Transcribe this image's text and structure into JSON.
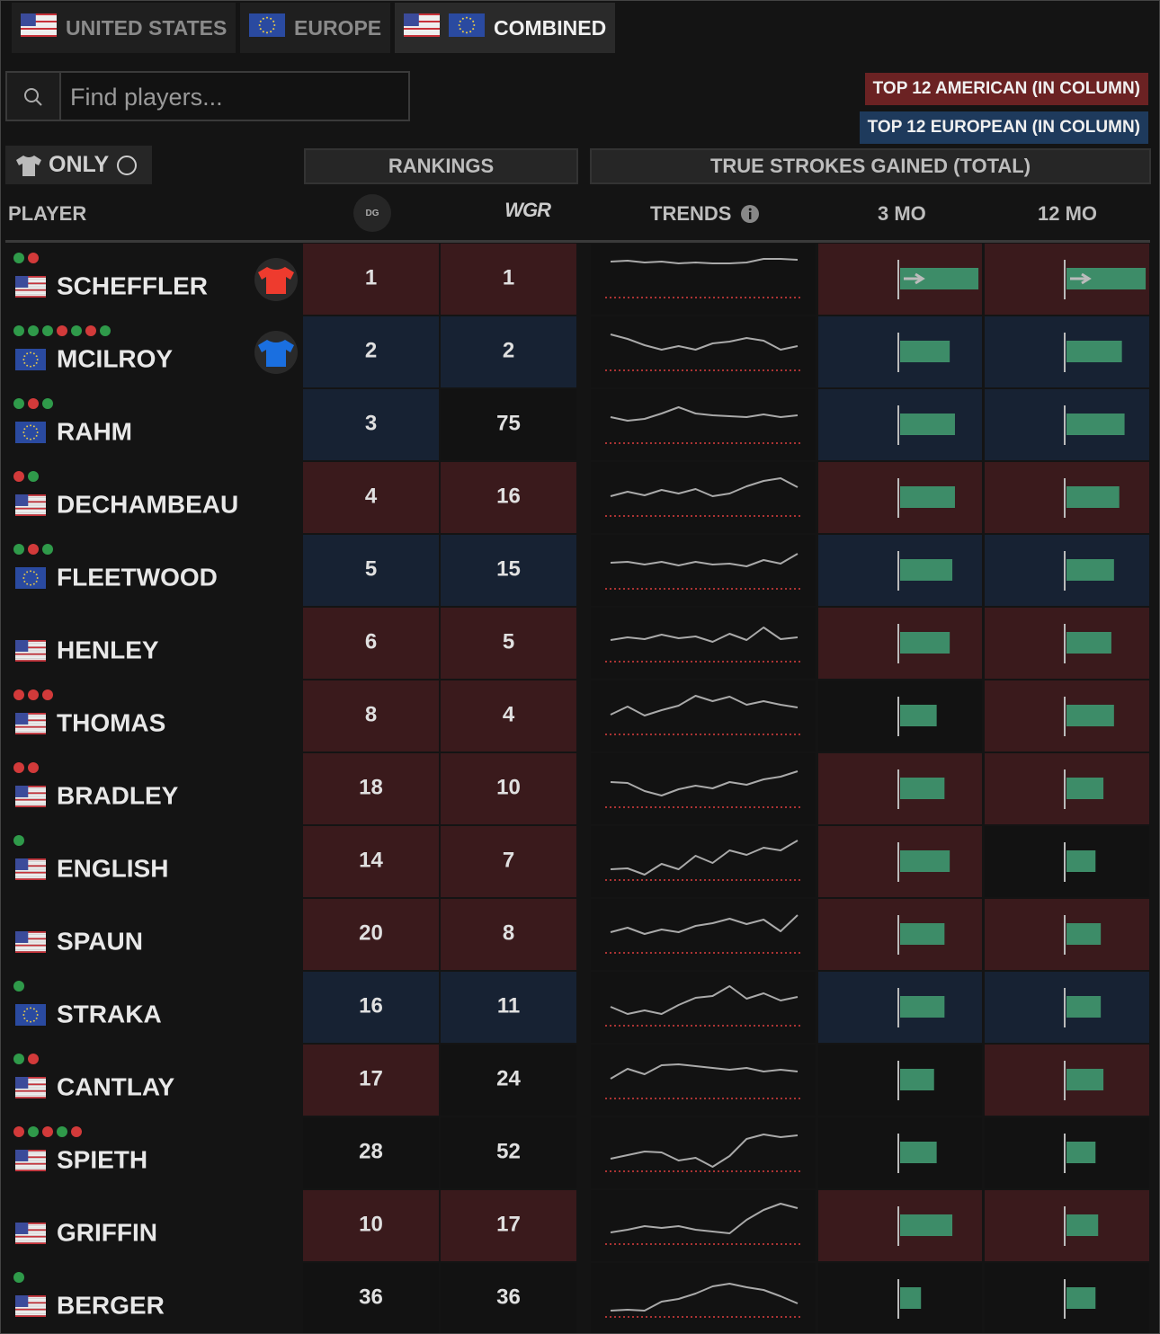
{
  "tabs": [
    "UNITED STATES",
    "EUROPE",
    "COMBINED"
  ],
  "search": {
    "placeholder": "Find players..."
  },
  "legend": [
    "TOP 12 AMERICAN (IN COLUMN)",
    "TOP 12 EUROPEAN (IN COLUMN)"
  ],
  "filter": "ONLY",
  "groups": [
    "RANKINGS",
    "TRUE STROKES GAINED (TOTAL)"
  ],
  "columns": {
    "player": "PLAYER",
    "dg": "DG",
    "wgr": "WGR",
    "trends": "TRENDS",
    "sg3": "3 MO",
    "sg12": "12 MO"
  },
  "sg_lim": [
    0,
    3.1
  ],
  "trend_lim": [
    0,
    10
  ],
  "rows": [
    {
      "name": "SCHEFFLER",
      "region": "us",
      "team": "us",
      "dots": [
        "green",
        "red"
      ],
      "dg": 1,
      "wgr": 1,
      "sg3": 3.0,
      "sg12": 3.0,
      "arrow": true,
      "hl": [
        "us",
        "us",
        "us",
        "us"
      ],
      "trend": [
        8,
        8.2,
        7.8,
        8,
        7.6,
        7.8,
        7.6,
        7.6,
        7.8,
        8.6,
        8.6,
        8.4
      ]
    },
    {
      "name": "MCILROY",
      "region": "eu",
      "team": "eu",
      "dots": [
        "green",
        "green",
        "green",
        "red",
        "green",
        "red",
        "green"
      ],
      "dg": 2,
      "wgr": 2,
      "sg3": 1.9,
      "sg12": 2.1,
      "hl": [
        "eu",
        "eu",
        "eu",
        "eu"
      ],
      "trend": [
        8,
        7,
        5.6,
        4.6,
        5.4,
        4.6,
        6,
        6.4,
        7.2,
        6.6,
        4.6,
        5.4
      ]
    },
    {
      "name": "RAHM",
      "region": "eu",
      "dots": [
        "green",
        "red",
        "green"
      ],
      "dg": 3,
      "wgr": 75,
      "sg3": 2.1,
      "sg12": 2.2,
      "hl": [
        "eu",
        null,
        "eu",
        "eu"
      ],
      "trend": [
        5.8,
        5,
        5.4,
        6.6,
        8,
        6.6,
        6.2,
        6,
        5.8,
        6.4,
        5.8,
        6.2
      ]
    },
    {
      "name": "DECHAMBEAU",
      "region": "us",
      "dots": [
        "red",
        "green"
      ],
      "dg": 4,
      "wgr": 16,
      "sg3": 2.1,
      "sg12": 2.0,
      "hl": [
        "us",
        "us",
        "us",
        "us"
      ],
      "trend": [
        4.4,
        5.4,
        4.6,
        5.8,
        5,
        6,
        4.4,
        5,
        6.6,
        7.8,
        8.4,
        6.4
      ]
    },
    {
      "name": "FLEETWOOD",
      "region": "eu",
      "dots": [
        "green",
        "red",
        "green"
      ],
      "dg": 5,
      "wgr": 15,
      "sg3": 2.0,
      "sg12": 1.8,
      "hl": [
        "eu",
        "eu",
        "eu",
        "eu"
      ],
      "trend": [
        5.8,
        6,
        5.4,
        6,
        5.2,
        6,
        5.4,
        5.6,
        5,
        6.4,
        5.6,
        7.8
      ]
    },
    {
      "name": "HENLEY",
      "region": "us",
      "dots": [],
      "dg": 6,
      "wgr": 5,
      "sg3": 1.9,
      "sg12": 1.7,
      "hl": [
        "us",
        "us",
        "us",
        "us"
      ],
      "trend": [
        4.8,
        5.4,
        5,
        6,
        5.2,
        5.6,
        4.4,
        6.2,
        4.8,
        7.6,
        5,
        5.4
      ]
    },
    {
      "name": "THOMAS",
      "region": "us",
      "dots": [
        "red",
        "red",
        "red"
      ],
      "dg": 8,
      "wgr": 4,
      "sg3": 1.4,
      "sg12": 1.8,
      "hl": [
        "us",
        "us",
        null,
        "us"
      ],
      "trend": [
        4.4,
        6.2,
        4.2,
        5.4,
        6.4,
        8.6,
        7.4,
        8.4,
        6.6,
        7.4,
        6.6,
        6
      ]
    },
    {
      "name": "BRADLEY",
      "region": "us",
      "dots": [
        "red",
        "red"
      ],
      "dg": 18,
      "wgr": 10,
      "sg3": 1.7,
      "sg12": 1.4,
      "hl": [
        "us",
        "us",
        "us",
        "us"
      ],
      "trend": [
        5.6,
        5.4,
        3.6,
        2.6,
        4,
        4.8,
        4.2,
        5.6,
        5,
        6.2,
        6.8,
        8
      ]
    },
    {
      "name": "ENGLISH",
      "region": "us",
      "dots": [
        "green"
      ],
      "dg": 14,
      "wgr": 7,
      "sg3": 1.9,
      "sg12": 1.1,
      "hl": [
        "us",
        "us",
        "us",
        null
      ],
      "trend": [
        2.4,
        2.6,
        1.2,
        3.6,
        2.4,
        5.4,
        3.8,
        6.6,
        5.6,
        7.2,
        6.6,
        8.8
      ]
    },
    {
      "name": "SPAUN",
      "region": "us",
      "dots": [],
      "dg": 20,
      "wgr": 8,
      "sg3": 1.7,
      "sg12": 1.3,
      "hl": [
        "us",
        "us",
        "us",
        "us"
      ],
      "trend": [
        4.6,
        5.6,
        4.2,
        5.2,
        4.6,
        6,
        6.6,
        7.6,
        6.4,
        7.4,
        4.8,
        8.4
      ]
    },
    {
      "name": "STRAKA",
      "region": "eu",
      "dots": [
        "green"
      ],
      "dg": 16,
      "wgr": 11,
      "sg3": 1.7,
      "sg12": 1.3,
      "hl": [
        "eu",
        "eu",
        "eu",
        "eu"
      ],
      "trend": [
        4.2,
        2.6,
        3.4,
        2.6,
        4.6,
        6.2,
        6.6,
        8.8,
        6,
        7.2,
        5.6,
        6.4
      ]
    },
    {
      "name": "CANTLAY",
      "region": "us",
      "dots": [
        "green",
        "red"
      ],
      "dg": 17,
      "wgr": 24,
      "sg3": 1.3,
      "sg12": 1.4,
      "hl": [
        "us",
        null,
        null,
        "us"
      ],
      "trend": [
        4.4,
        6.6,
        5.4,
        7.4,
        7.6,
        7.2,
        6.8,
        6.4,
        6.8,
        6,
        6.4,
        6
      ]
    },
    {
      "name": "SPIETH",
      "region": "us",
      "dots": [
        "red",
        "green",
        "red",
        "green",
        "red"
      ],
      "dg": 28,
      "wgr": 52,
      "sg3": 1.4,
      "sg12": 1.1,
      "hl": [
        null,
        null,
        null,
        null
      ],
      "trend": [
        2.8,
        3.6,
        4.4,
        4.2,
        2.4,
        3,
        1,
        3.4,
        7.2,
        8.2,
        7.6,
        8
      ]
    },
    {
      "name": "GRIFFIN",
      "region": "us",
      "dots": [],
      "dg": 10,
      "wgr": 17,
      "sg3": 2.0,
      "sg12": 1.2,
      "hl": [
        "us",
        "us",
        "us",
        "us"
      ],
      "trend": [
        2.6,
        3.2,
        4,
        3.6,
        4,
        3.2,
        2.8,
        2.4,
        5.4,
        7.6,
        9,
        8
      ]
    },
    {
      "name": "BERGER",
      "region": "us",
      "dots": [
        "green"
      ],
      "dg": 36,
      "wgr": 36,
      "sg3": 0.8,
      "sg12": 1.1,
      "hl": [
        null,
        null,
        null,
        null
      ],
      "trend": [
        1.4,
        1.6,
        1.4,
        3.4,
        4,
        5.2,
        6.8,
        7.4,
        6.6,
        6,
        4.6,
        3
      ]
    }
  ]
}
